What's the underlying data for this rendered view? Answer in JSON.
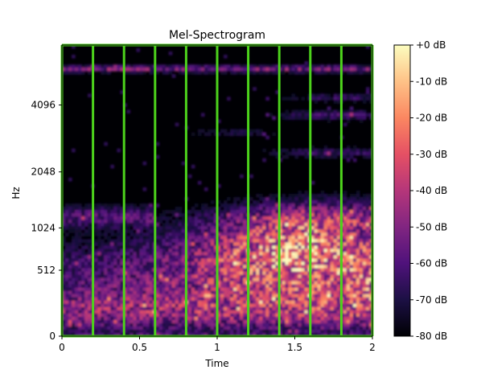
{
  "chart_data": {
    "type": "heatmap",
    "title": "Mel-Spectrogram",
    "xlabel": "Time",
    "ylabel": "Hz",
    "xlim": [
      0,
      2
    ],
    "x_ticks": [
      "0",
      "0.5",
      "1",
      "1.5",
      "2"
    ],
    "y_ticks": [
      "0",
      "512",
      "1024",
      "2048",
      "4096"
    ],
    "colorbar": {
      "colormap": "magma",
      "range_db": [
        -80,
        0
      ],
      "tick_labels": [
        "+0 dB",
        "-10 dB",
        "-20 dB",
        "-30 dB",
        "-40 dB",
        "-50 dB",
        "-60 dB",
        "-70 dB",
        "-80 dB"
      ]
    },
    "overlay_lines": {
      "color": "#4cd21c",
      "x_positions": [
        0,
        0.2,
        0.4,
        0.6,
        0.8,
        1.0,
        1.2,
        1.4,
        1.6,
        1.8,
        2.0
      ]
    },
    "grid": false
  }
}
